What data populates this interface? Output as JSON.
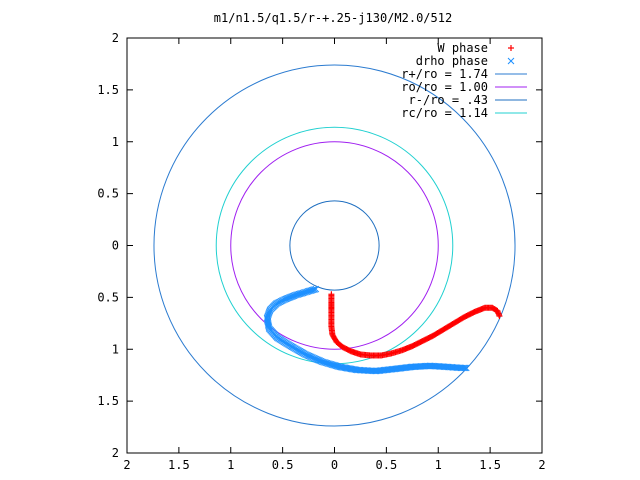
{
  "chart_data": {
    "type": "scatter",
    "title": "m1/n1.5/q1.5/r-+.25-j130/M2.0/512",
    "xlabel": "",
    "ylabel": "",
    "xlim": [
      -2,
      2
    ],
    "ylim": [
      -2,
      2
    ],
    "x_tick_values": [
      -2,
      -1.5,
      -1,
      -0.5,
      0,
      0.5,
      1,
      1.5,
      2
    ],
    "x_tick_labels": [
      "2",
      "1.5",
      "1",
      "0.5",
      "0",
      "0.5",
      "1",
      "1.5",
      "2"
    ],
    "y_tick_values": [
      2,
      1.5,
      1,
      0.5,
      0,
      -0.5,
      -1,
      -1.5,
      -2
    ],
    "y_tick_labels": [
      "2",
      "1.5",
      "1",
      "0.5",
      "0",
      "0.5",
      "1",
      "1.5",
      "2"
    ],
    "grid": false,
    "legend_position": "top-right",
    "circles": [
      {
        "label": "r+/ro = 1.74",
        "radius": 1.74,
        "color": "#2b7bd0"
      },
      {
        "label": "ro/ro = 1.00",
        "radius": 1.0,
        "color": "#a020f0"
      },
      {
        "label": "r-/ro = .43",
        "radius": 0.43,
        "color": "#1f6fc0"
      },
      {
        "label": "rc/ro = 1.14",
        "radius": 1.14,
        "color": "#20d0d0"
      }
    ],
    "series": [
      {
        "name": "W phase",
        "marker": "+",
        "color": "#ff0000",
        "points": [
          [
            -0.03,
            -0.47
          ],
          [
            -0.03,
            -0.55
          ],
          [
            -0.03,
            -0.62
          ],
          [
            -0.03,
            -0.7
          ],
          [
            -0.03,
            -0.78
          ],
          [
            -0.02,
            -0.86
          ],
          [
            0.02,
            -0.93
          ],
          [
            0.08,
            -0.98
          ],
          [
            0.16,
            -1.02
          ],
          [
            0.25,
            -1.05
          ],
          [
            0.35,
            -1.06
          ],
          [
            0.45,
            -1.06
          ],
          [
            0.55,
            -1.04
          ],
          [
            0.65,
            -1.01
          ],
          [
            0.75,
            -0.97
          ],
          [
            0.85,
            -0.92
          ],
          [
            0.95,
            -0.87
          ],
          [
            1.05,
            -0.81
          ],
          [
            1.15,
            -0.75
          ],
          [
            1.25,
            -0.69
          ],
          [
            1.35,
            -0.64
          ],
          [
            1.45,
            -0.6
          ],
          [
            1.52,
            -0.6
          ],
          [
            1.57,
            -0.63
          ],
          [
            1.59,
            -0.68
          ]
        ]
      },
      {
        "name": "drho phase",
        "marker": "x",
        "color": "#1e90ff",
        "points": [
          [
            -0.18,
            -0.42
          ],
          [
            -0.28,
            -0.45
          ],
          [
            -0.38,
            -0.48
          ],
          [
            -0.48,
            -0.52
          ],
          [
            -0.56,
            -0.56
          ],
          [
            -0.62,
            -0.62
          ],
          [
            -0.65,
            -0.7
          ],
          [
            -0.63,
            -0.8
          ],
          [
            -0.55,
            -0.89
          ],
          [
            -0.42,
            -0.97
          ],
          [
            -0.28,
            -1.05
          ],
          [
            -0.12,
            -1.12
          ],
          [
            0.05,
            -1.17
          ],
          [
            0.22,
            -1.2
          ],
          [
            0.4,
            -1.21
          ],
          [
            0.58,
            -1.19
          ],
          [
            0.75,
            -1.17
          ],
          [
            0.92,
            -1.16
          ],
          [
            1.08,
            -1.17
          ],
          [
            1.22,
            -1.18
          ],
          [
            1.27,
            -1.18
          ]
        ]
      }
    ]
  }
}
